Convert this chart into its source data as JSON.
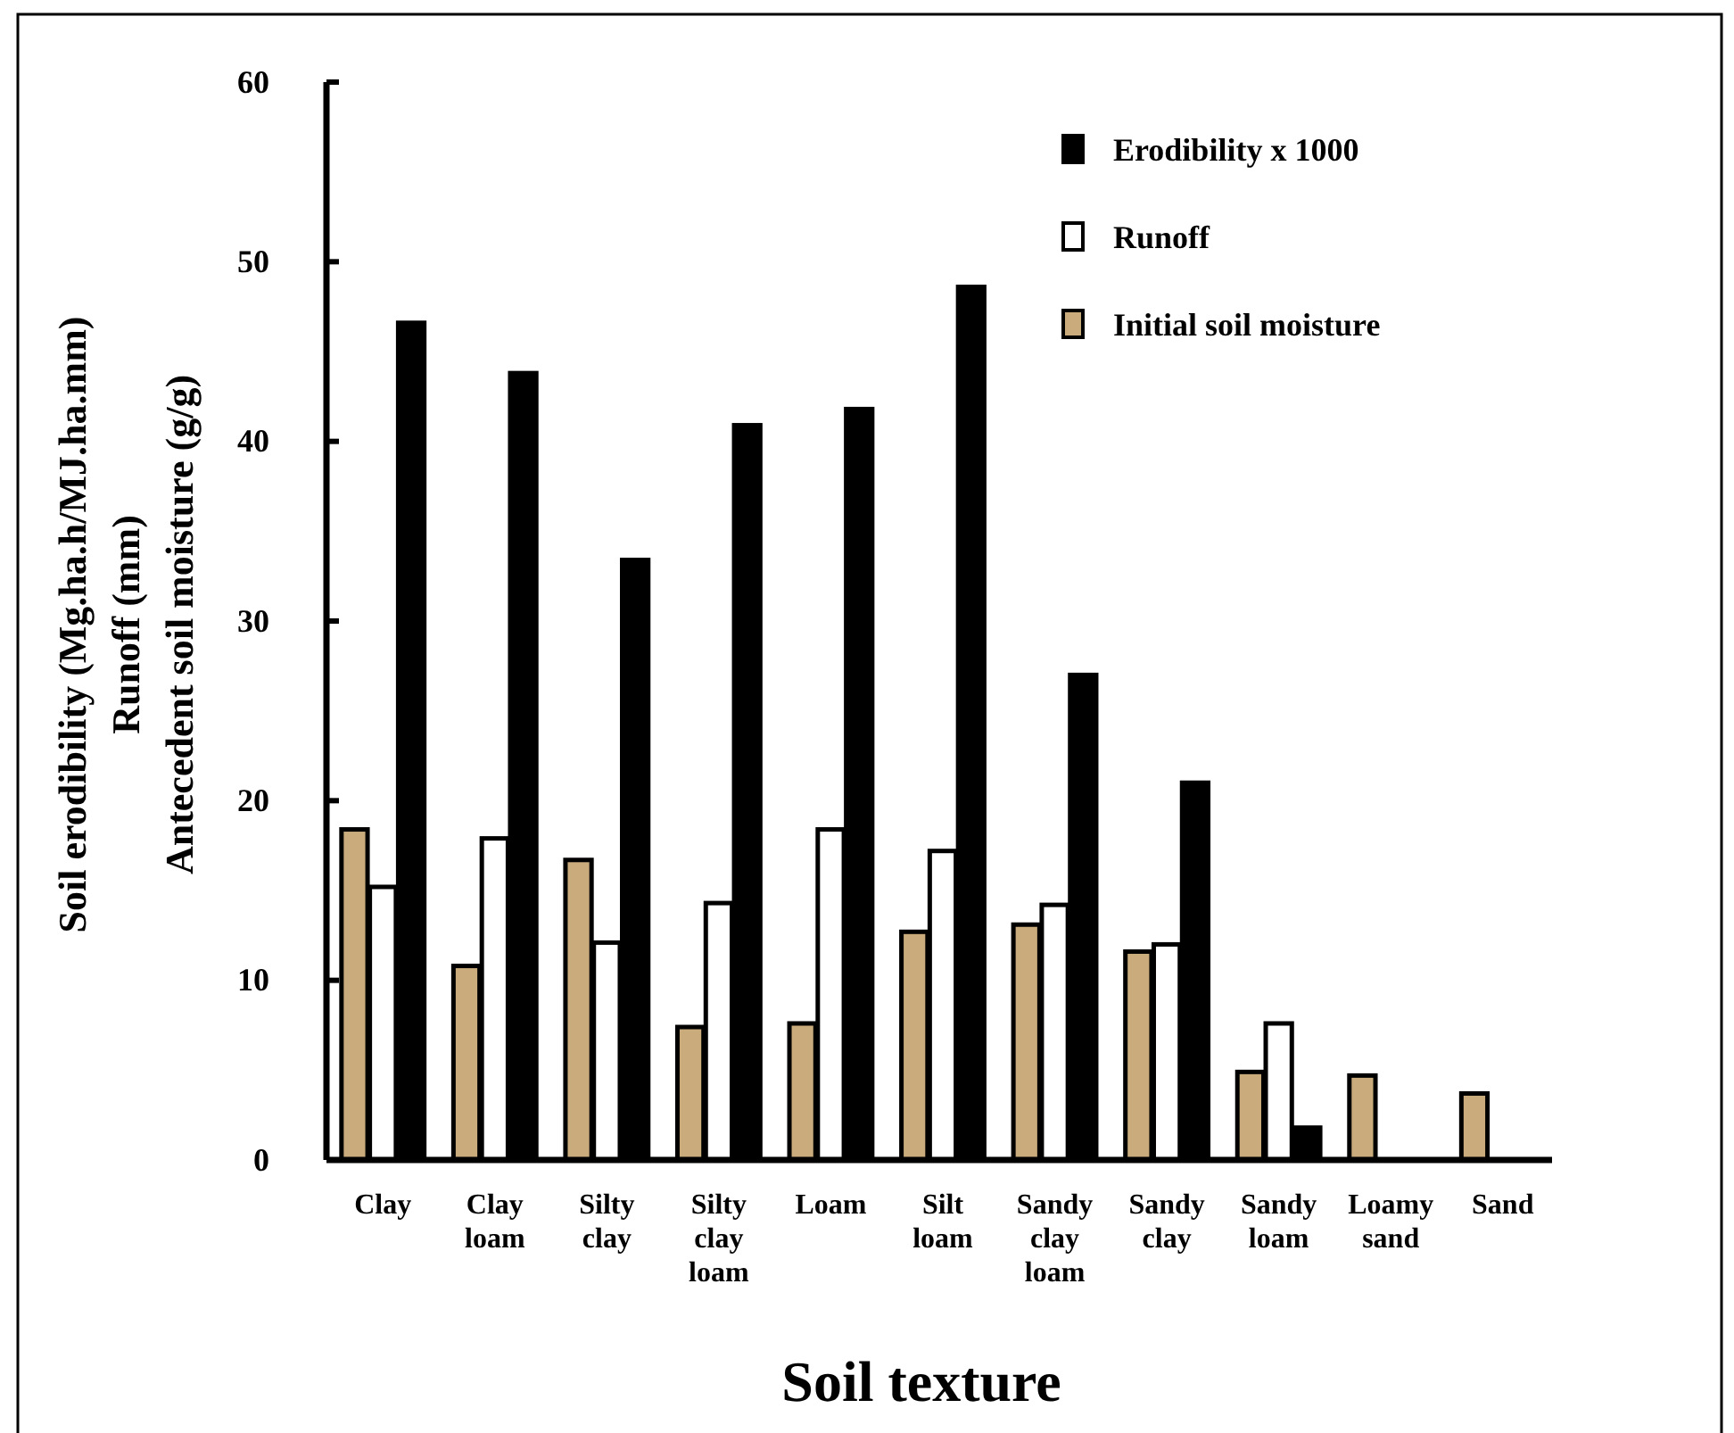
{
  "chart_data": {
    "type": "bar",
    "xlabel": "Soil texture",
    "ylabel": "Soil erodibility (Mg.ha.h/MJ.ha.mm)\nRunoff (mm)\nAntecedent soil moisture (g/g)",
    "categories": [
      "Clay",
      "Clay loam",
      "Silty clay",
      "Silty clay loam",
      "Loam",
      "Silt loam",
      "Sandy clay loam",
      "Sandy clay",
      "Sandy loam",
      "Loamy sand",
      "Sand"
    ],
    "series": [
      {
        "name": "Initial soil moisture",
        "color": "#c9ab7c",
        "values": [
          18.4,
          10.8,
          16.7,
          7.4,
          7.6,
          12.7,
          13.1,
          11.6,
          4.9,
          4.7,
          3.7
        ]
      },
      {
        "name": "Runoff",
        "color": "#ffffff",
        "values": [
          15.2,
          17.9,
          12.1,
          14.3,
          18.4,
          17.2,
          14.2,
          12.0,
          7.6,
          0,
          0
        ]
      },
      {
        "name": "Erodibility x 1000",
        "color": "#000000",
        "values": [
          46.6,
          43.8,
          33.4,
          40.9,
          41.8,
          48.6,
          27.0,
          21.0,
          1.8,
          0,
          0
        ]
      }
    ],
    "ylim": [
      0,
      60
    ],
    "yticks": [
      0,
      10,
      20,
      30,
      40,
      50,
      60
    ],
    "grid": false,
    "legend": "top right"
  }
}
